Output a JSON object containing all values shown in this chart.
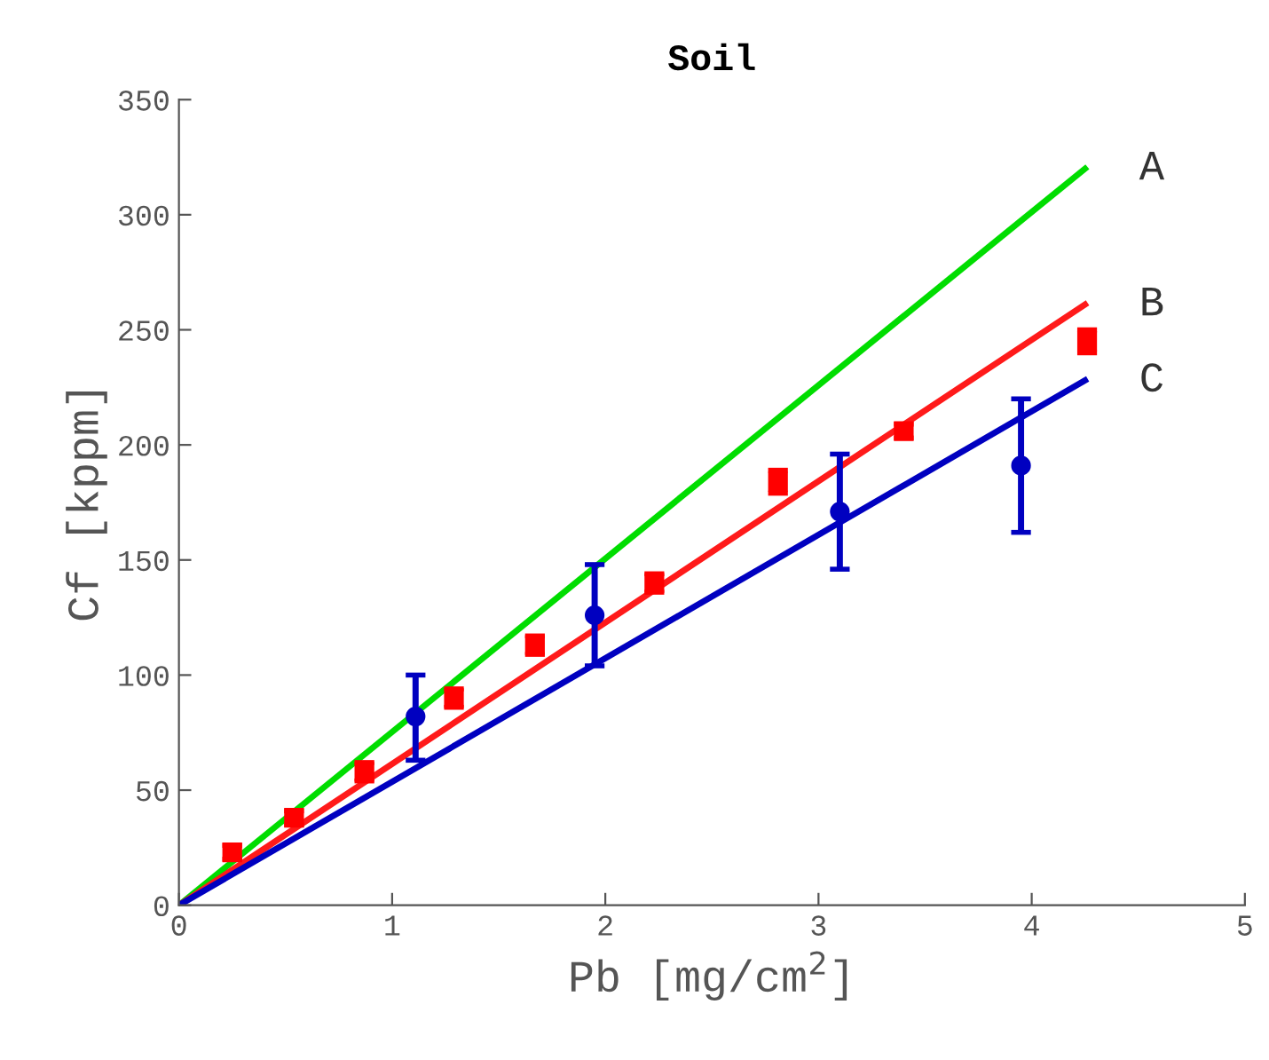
{
  "chart_data": {
    "type": "line",
    "title": "Soil",
    "xlabel": "Pb [mg/cm$^{2}$]",
    "ylabel": "Cf [kppm]",
    "xlim": [
      0,
      5
    ],
    "ylim": [
      0,
      350
    ],
    "xticks": [
      0,
      1,
      2,
      3,
      4,
      5
    ],
    "yticks": [
      0,
      50,
      100,
      150,
      200,
      250,
      300,
      350
    ],
    "grid": false,
    "legend": false,
    "series": [
      {
        "name": "A",
        "color": "#00dd00",
        "x": [
          0,
          4.25
        ],
        "values": [
          0,
          320
        ]
      },
      {
        "name": "B",
        "color": "#ff1a1a",
        "x": [
          0,
          4.25
        ],
        "values": [
          0,
          261
        ]
      },
      {
        "name": "C",
        "color": "#0000c0",
        "x": [
          0,
          4.25
        ],
        "values": [
          0,
          228
        ]
      },
      {
        "type": "scatter",
        "marker": "square",
        "color": "#ff0000",
        "x": [
          0.25,
          0.54,
          0.87,
          1.29,
          1.67,
          2.23,
          2.81,
          3.4,
          4.26
        ],
        "values": [
          23,
          38,
          58,
          90,
          113,
          140,
          184,
          206,
          245
        ],
        "errors": [
          3,
          3,
          4,
          4,
          4,
          4,
          5,
          3,
          5
        ]
      },
      {
        "type": "scatter",
        "marker": "circle",
        "color": "#0000c0",
        "x": [
          1.11,
          1.95,
          3.1,
          3.95
        ],
        "values": [
          82,
          126,
          171,
          191
        ],
        "errors": [
          [
            63,
            100
          ],
          [
            104,
            148
          ],
          [
            146,
            196
          ],
          [
            162,
            220
          ]
        ]
      }
    ]
  }
}
